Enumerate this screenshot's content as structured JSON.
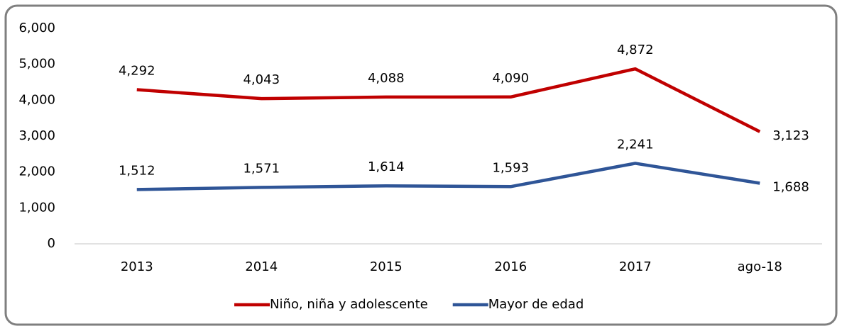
{
  "chart_data": {
    "type": "line",
    "categories": [
      "2013",
      "2014",
      "2015",
      "2016",
      "2017",
      "ago-18"
    ],
    "series": [
      {
        "name": "Niño, niña y adolescente",
        "color": "#c00000",
        "values": [
          4292,
          4043,
          4088,
          4090,
          4872,
          3123
        ],
        "value_labels": [
          "4,292",
          "4,043",
          "4,088",
          "4,090",
          "4,872",
          "3,123"
        ]
      },
      {
        "name": "Mayor de edad",
        "color": "#2f5597",
        "values": [
          1512,
          1571,
          1614,
          1593,
          2241,
          1688
        ],
        "value_labels": [
          "1,512",
          "1,571",
          "1,614",
          "1,593",
          "2,241",
          "1,688"
        ]
      }
    ],
    "ylim": [
      0,
      6000
    ],
    "yticks": [
      0,
      {
        "value": 1000,
        "label": "1,000"
      },
      {
        "value": 2000,
        "label": "2,000"
      },
      {
        "value": 3000,
        "label": "3,000"
      },
      {
        "value": 4000,
        "label": "4,000"
      },
      {
        "value": 5000,
        "label": "5,000"
      },
      {
        "value": 6000,
        "label": "6,000"
      }
    ],
    "grid": false,
    "legend": "bottom"
  }
}
